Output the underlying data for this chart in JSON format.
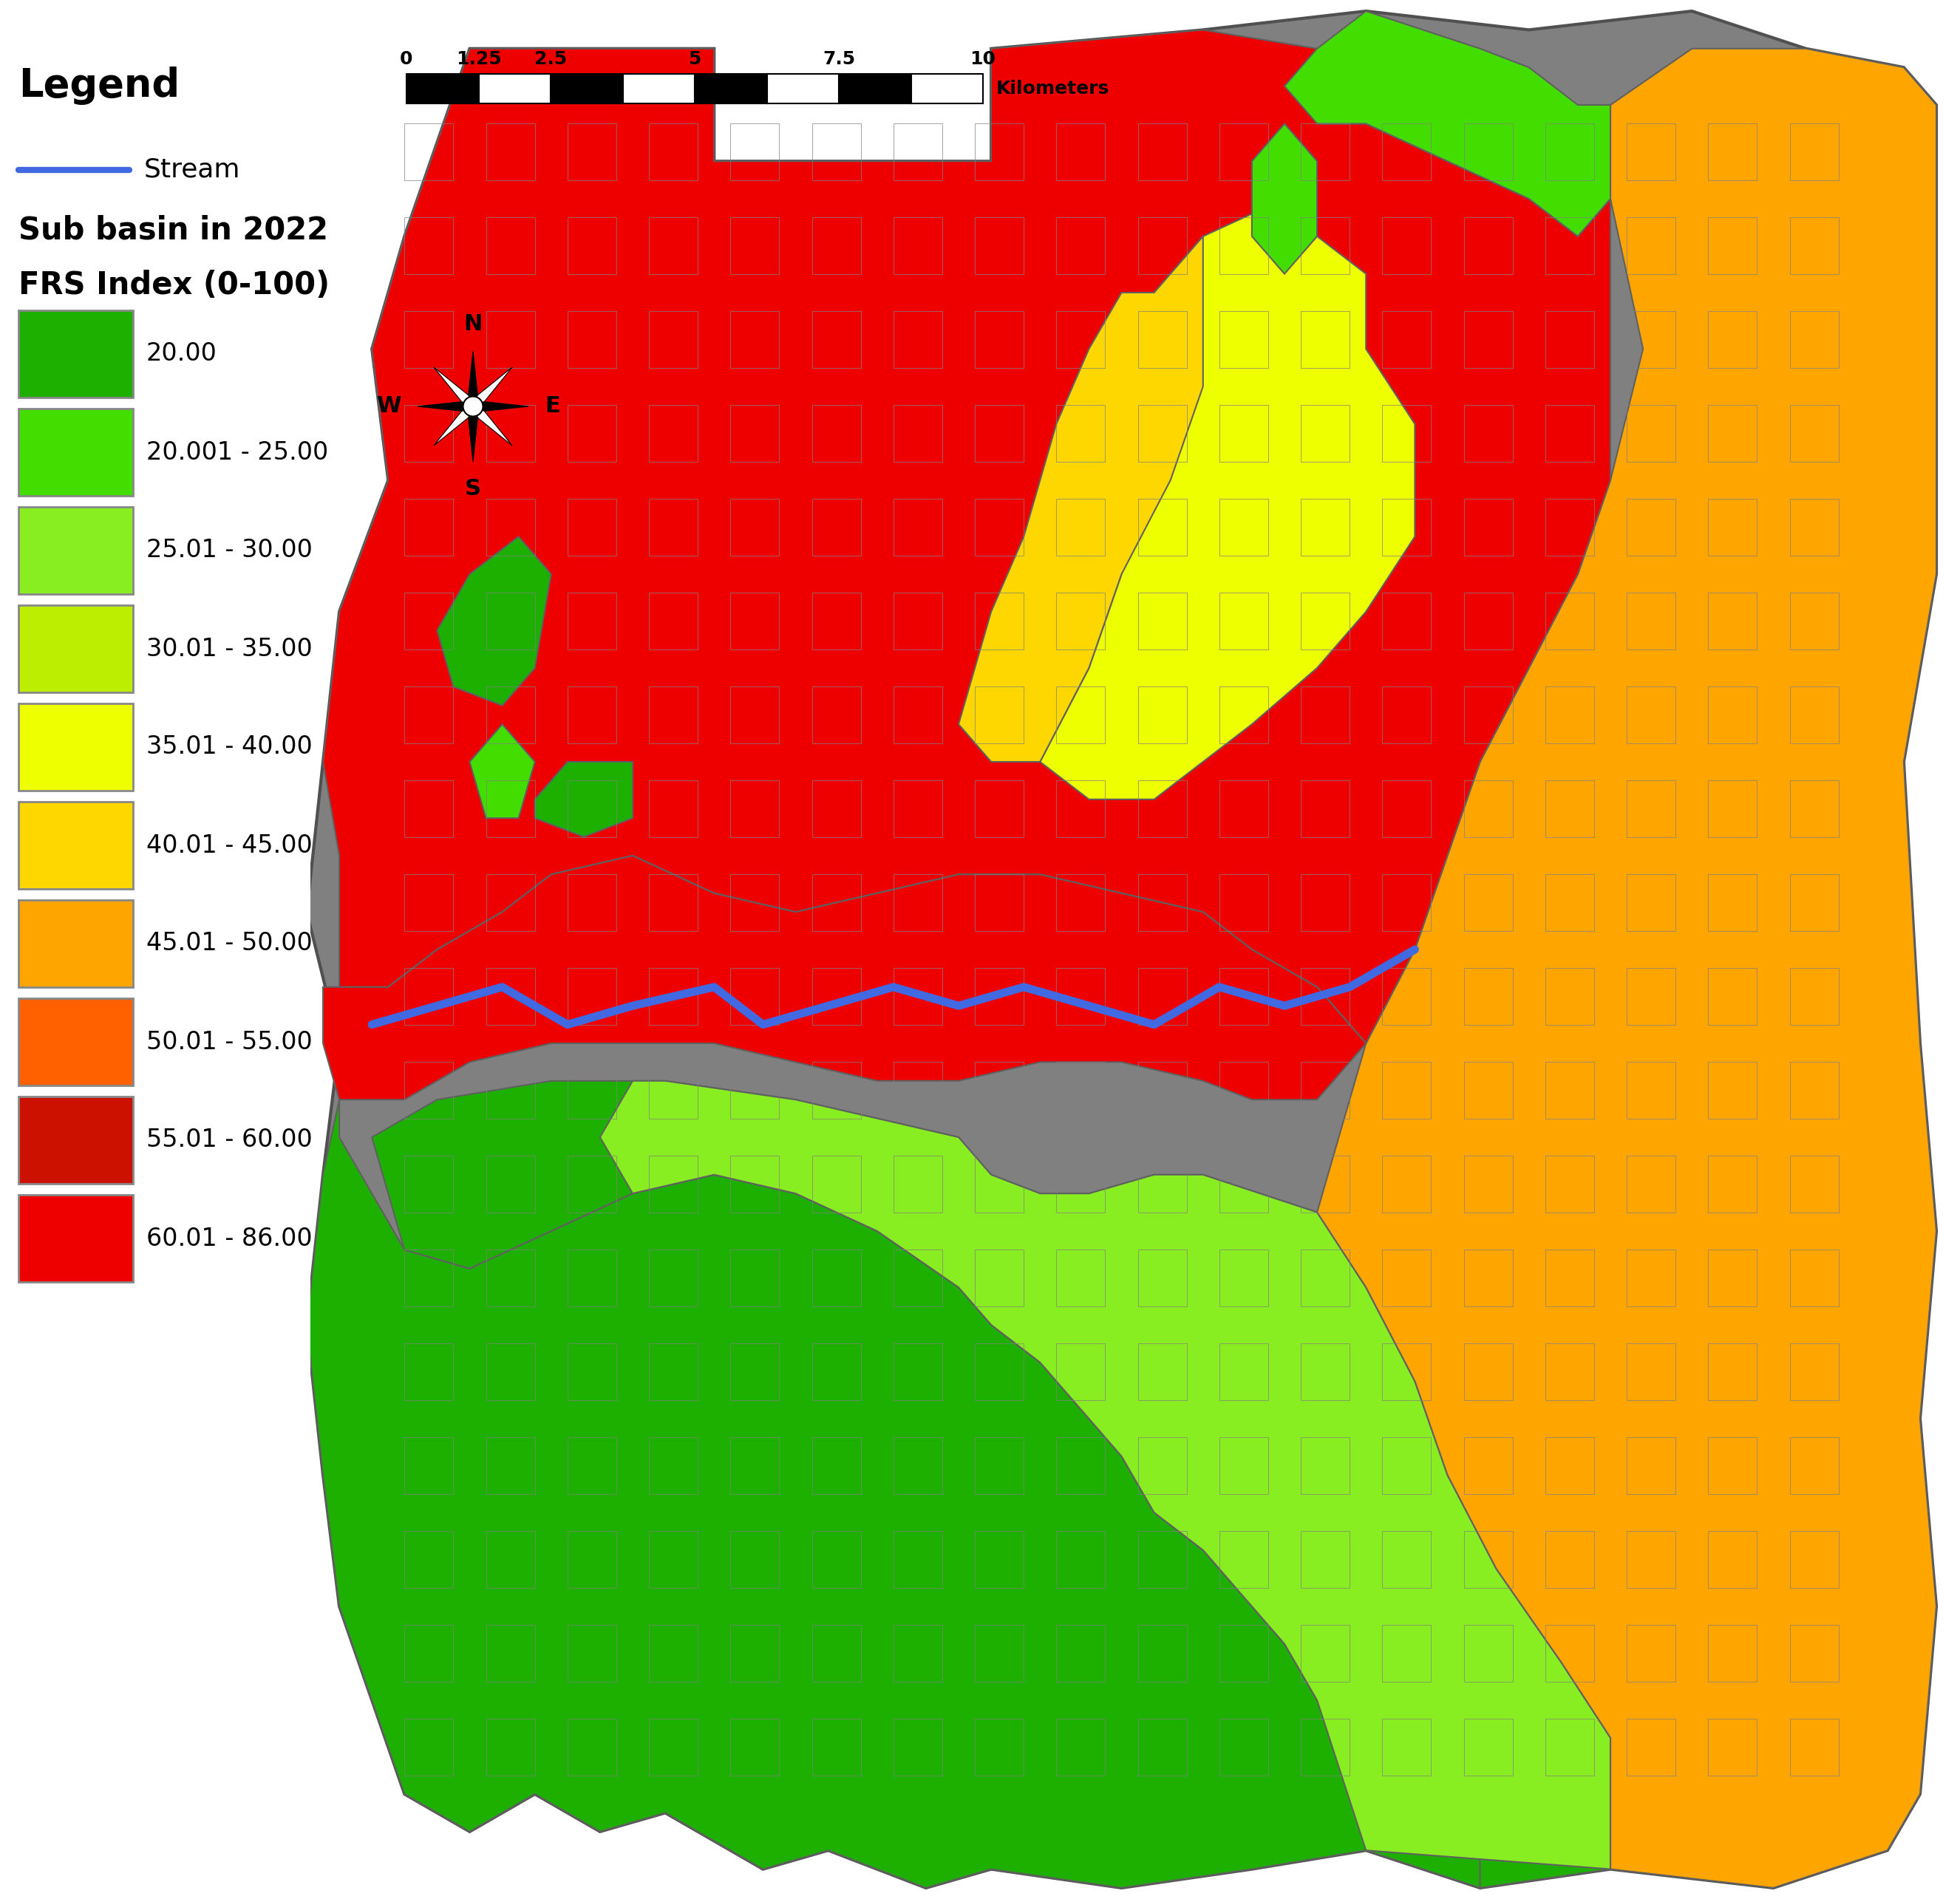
{
  "title_legend": "Legend",
  "stream_label": "Stream",
  "stream_color": "#4169E1",
  "subtitle": "Sub basin in 2022",
  "index_label": "FRS Index (0-100)",
  "categories": [
    "20.00",
    "20.001 - 25.00",
    "25.01 - 30.00",
    "30.01 - 35.00",
    "35.01 - 40.00",
    "40.01 - 45.00",
    "45.01 - 50.00",
    "50.01 - 55.00",
    "55.01 - 60.00",
    "60.01 - 86.00"
  ],
  "colors": [
    "#1DB000",
    "#44DD00",
    "#88EE22",
    "#BBEE00",
    "#EEFF00",
    "#FFD700",
    "#FFA500",
    "#FF6000",
    "#CC1100",
    "#EE0000"
  ],
  "scale_labels": [
    "0",
    "1.252.5",
    "5",
    "7.5",
    "10"
  ],
  "scale_unit": "Kilometers",
  "background_color": "#FFFFFF",
  "title_fontsize": 38,
  "subtitle_fontsize": 30,
  "label_fontsize": 26,
  "legend_fontsize": 24,
  "scalebar_fontsize": 18,
  "compass_fontsize": 22
}
